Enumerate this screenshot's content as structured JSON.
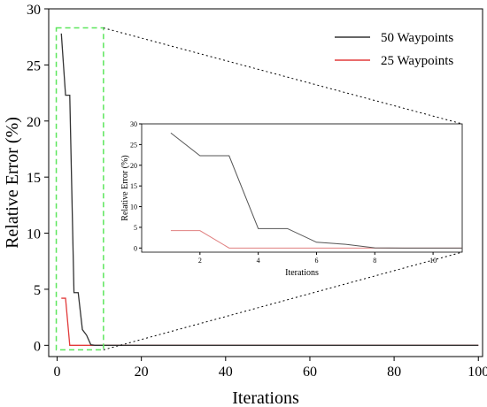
{
  "chart_data": [
    {
      "type": "line",
      "title": "",
      "xlabel": "Iterations",
      "ylabel": "Relative Error (%)",
      "xlim": [
        -2,
        101
      ],
      "ylim": [
        -1,
        30
      ],
      "xticks": [
        0,
        20,
        40,
        60,
        80,
        100
      ],
      "yticks": [
        0,
        5,
        10,
        15,
        20,
        25,
        30
      ],
      "grid": false,
      "legend": "top-right",
      "series": [
        {
          "name": "50 Waypoints",
          "color": "#333333",
          "x": [
            1,
            2,
            3,
            4,
            5,
            6,
            7,
            8,
            9,
            10,
            20,
            40,
            60,
            80,
            100
          ],
          "y": [
            27.8,
            22.3,
            22.3,
            4.7,
            4.7,
            1.4,
            0.9,
            0.05,
            0,
            0,
            0,
            0,
            0,
            0,
            0
          ]
        },
        {
          "name": "25 Waypoints",
          "color": "#e23b3b",
          "x": [
            1,
            2,
            3,
            4,
            5,
            6,
            7,
            8,
            9,
            10,
            20,
            40,
            60,
            80,
            100
          ],
          "y": [
            4.2,
            4.2,
            0,
            0,
            0,
            0,
            0,
            0,
            0,
            0,
            0,
            0,
            0,
            0,
            0
          ]
        }
      ]
    },
    {
      "type": "line",
      "title": "",
      "xlabel": "Iterations",
      "ylabel": "Relative Error (%)",
      "xlim": [
        0,
        11
      ],
      "ylim": [
        -1,
        30
      ],
      "xticks": [
        2,
        4,
        6,
        8,
        10
      ],
      "yticks": [
        0,
        5,
        10,
        15,
        20,
        25,
        30
      ],
      "grid": false,
      "series": [
        {
          "name": "50 Waypoints",
          "color": "#555555",
          "x": [
            1,
            2,
            3,
            4,
            5,
            6,
            7,
            8,
            9,
            10,
            11
          ],
          "y": [
            27.8,
            22.3,
            22.3,
            4.7,
            4.7,
            1.4,
            0.9,
            0.05,
            0,
            0,
            0
          ]
        },
        {
          "name": "25 Waypoints",
          "color": "#e08080",
          "x": [
            1,
            2,
            3,
            4,
            5,
            6,
            7,
            8,
            9,
            10,
            11
          ],
          "y": [
            4.2,
            4.2,
            0,
            0,
            0,
            0,
            0,
            0,
            0,
            0,
            0
          ]
        }
      ]
    }
  ],
  "zoom_box": {
    "color": "#5ce65c",
    "connector_color": "#000000"
  }
}
